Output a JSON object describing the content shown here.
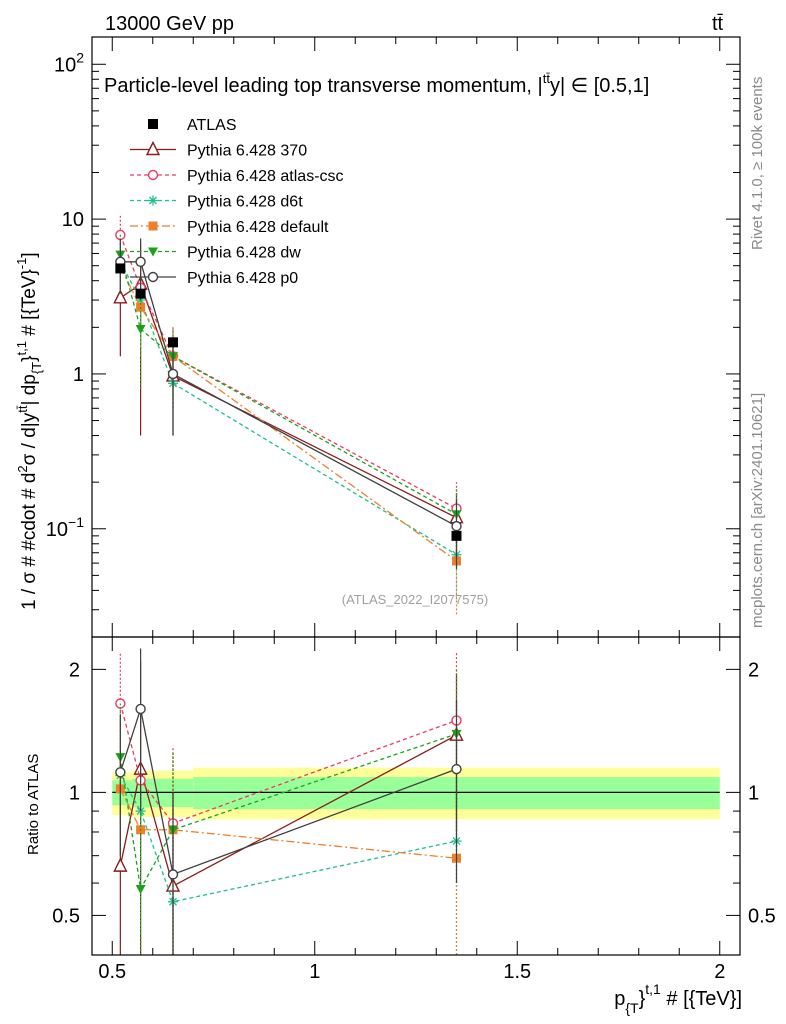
{
  "header": {
    "energy": "13000 GeV pp",
    "process": "tt̄",
    "side_rivet": "Rivet 4.1.0, ≥ 100k events",
    "side_mcplots": "mcplots.cern.ch [arXiv:2401.10621]",
    "analysis_id": "(ATLAS_2022_I2077575)"
  },
  "chart_data": [
    {
      "type": "line",
      "panel": "main",
      "title": "Particle-level leading top transverse momentum, |y^{tt̄}| ∈ [0.5,1]",
      "title_prefix": "Particle-level leading top transverse momentum, |",
      "title_sup": "tt̄",
      "title_y": "y",
      "title_suffix": "| ∈ [0.5,1]",
      "ylabel": "1 / σ # #cdot # d²σ / d|y^{tt̄}| dp_{T}^{t,1} # [{TeV}⁻¹]",
      "ylabel_main": "1 / σ # #cdot # d",
      "ylabel_sq": "2",
      "ylabel_mid": "σ / d|y",
      "ylabel_sup": "tt̄",
      "ylabel_mid2": "| dp",
      "ylabel_sub": "{T",
      "ylabel_brace": "}",
      "ylabel_sup2": "t,1",
      "ylabel_end": " # [{TeV}",
      "ylabel_sup3": "-1",
      "ylabel_close": "]",
      "yscale": "log",
      "ylim": [
        0.02,
        150
      ],
      "xlim": [
        0.45,
        2.05
      ],
      "ytick_labels": [
        {
          "value": 100,
          "base": "10",
          "exp": "2"
        },
        {
          "value": 10,
          "base": "10",
          "exp": ""
        },
        {
          "value": 1,
          "base": "1",
          "exp": ""
        },
        {
          "value": 0.1,
          "base": "10",
          "exp": "−1"
        }
      ],
      "legend": [
        {
          "label": "ATLAS"
        },
        {
          "label": "Pythia 6.428 370"
        },
        {
          "label": "Pythia 6.428 atlas-csc"
        },
        {
          "label": "Pythia 6.428 d6t"
        },
        {
          "label": "Pythia 6.428 default"
        },
        {
          "label": "Pythia 6.428 dw"
        },
        {
          "label": "Pythia 6.428 p0"
        }
      ],
      "data": {
        "name": "ATLAS",
        "bins": [
          [
            0.5,
            0.55
          ],
          [
            0.55,
            0.6
          ],
          [
            0.6,
            0.7
          ],
          [
            0.7,
            2.0
          ]
        ],
        "x": [
          0.52,
          0.57,
          0.65,
          1.35
        ],
        "values": [
          4.8,
          3.3,
          1.6,
          0.09
        ]
      },
      "series": [
        {
          "name": "Pythia 6.428 370",
          "color": "#8b1a1a",
          "dash": "",
          "marker": "triangle-open",
          "x": [
            0.52,
            0.57,
            0.65,
            1.35
          ],
          "values": [
            3.1,
            3.8,
            0.97,
            0.118
          ],
          "err_low": [
            1.3,
            0.4,
            0.4,
            0.07
          ],
          "err_high": [
            5.6,
            7.0,
            1.6,
            0.17
          ]
        },
        {
          "name": "Pythia 6.428 atlas-csc",
          "color": "#ee3a5f",
          "dash": "4,3",
          "marker": "circle-open",
          "x": [
            0.52,
            0.57,
            0.65,
            1.35
          ],
          "values": [
            7.9,
            3.6,
            1.3,
            0.135
          ],
          "err_low": [
            5.0,
            2.0,
            0.7,
            0.08
          ],
          "err_high": [
            10.5,
            5.0,
            2.0,
            0.2
          ]
        },
        {
          "name": "Pythia 6.428 d6t",
          "color": "#1fbf8f",
          "dash": "4,3",
          "marker": "asterisk",
          "x": [
            0.52,
            0.57,
            0.65,
            1.35
          ],
          "values": [
            5.3,
            3.0,
            0.87,
            0.068
          ],
          "err_low": [
            3.5,
            1.5,
            0.4,
            0.035
          ],
          "err_high": [
            7.0,
            4.5,
            1.3,
            0.1
          ]
        },
        {
          "name": "Pythia 6.428 default",
          "color": "#f07f2a",
          "dash": "8,3,2,3",
          "marker": "square-filled",
          "x": [
            0.52,
            0.57,
            0.65,
            1.35
          ],
          "values": [
            4.9,
            2.7,
            1.3,
            0.062
          ],
          "err_low": [
            3.4,
            1.3,
            0.6,
            0.028
          ],
          "err_high": [
            7.0,
            4.0,
            2.0,
            0.1
          ]
        },
        {
          "name": "Pythia 6.428 dw",
          "color": "#1aa31a",
          "dash": "4,3",
          "marker": "triangle-down-filled",
          "x": [
            0.52,
            0.57,
            0.65,
            1.35
          ],
          "values": [
            5.9,
            1.95,
            1.3,
            0.124
          ],
          "err_low": [
            4.0,
            0.8,
            0.6,
            0.06
          ],
          "err_high": [
            8.0,
            3.2,
            2.0,
            0.18
          ]
        },
        {
          "name": "Pythia 6.428 p0",
          "color": "#404040",
          "dash": "",
          "marker": "circle-open",
          "x": [
            0.52,
            0.57,
            0.65,
            1.35
          ],
          "values": [
            5.3,
            5.3,
            1.0,
            0.104
          ],
          "err_low": [
            3.3,
            3.0,
            0.4,
            0.055
          ],
          "err_high": [
            7.5,
            7.5,
            1.6,
            0.155
          ]
        }
      ]
    },
    {
      "type": "line",
      "panel": "ratio",
      "ylabel": "Ratio to ATLAS",
      "xlabel": "p_{T}^{t,1} # [{TeV}]",
      "xlabel_p": "p",
      "xlabel_sub": "{T",
      "xlabel_brace": "}",
      "xlabel_sup": "t,1",
      "xlabel_end": " # [{TeV}]",
      "yscale": "log",
      "ylim": [
        0.4,
        2.4
      ],
      "xlim": [
        0.45,
        2.05
      ],
      "xticks": [
        0.5,
        1,
        1.5,
        2
      ],
      "xtick_labels": [
        "0.5",
        "1",
        "1.5",
        "2"
      ],
      "yticks": [
        0.5,
        1,
        2
      ],
      "ytick_labels": [
        "0.5",
        "1",
        "2"
      ],
      "uncertainty_bands": {
        "bins": [
          [
            0.5,
            0.55
          ],
          [
            0.55,
            0.6
          ],
          [
            0.6,
            0.7
          ],
          [
            0.7,
            2.0
          ]
        ],
        "inner": [
          [
            0.93,
            1.07
          ],
          [
            0.92,
            1.08
          ],
          [
            0.92,
            1.08
          ],
          [
            0.91,
            1.09
          ]
        ],
        "outer": [
          [
            0.88,
            1.12
          ],
          [
            0.87,
            1.13
          ],
          [
            0.87,
            1.13
          ],
          [
            0.86,
            1.15
          ]
        ]
      },
      "series": [
        {
          "name": "Pythia 6.428 370",
          "x": [
            0.52,
            0.57,
            0.65,
            1.35
          ],
          "values": [
            0.66,
            1.14,
            0.59,
            1.38
          ],
          "err_low": [
            0.3,
            0.12,
            0.25,
            0.8
          ],
          "err_high": [
            1.2,
            2.1,
            1.0,
            1.95
          ]
        },
        {
          "name": "Pythia 6.428 atlas-csc",
          "x": [
            0.52,
            0.57,
            0.65,
            1.35
          ],
          "values": [
            1.65,
            1.07,
            0.84,
            1.5
          ],
          "err_low": [
            1.05,
            0.6,
            0.45,
            0.9
          ],
          "err_high": [
            2.2,
            1.5,
            1.3,
            2.2
          ]
        },
        {
          "name": "Pythia 6.428 d6t",
          "x": [
            0.52,
            0.57,
            0.65,
            1.35
          ],
          "values": [
            1.1,
            0.9,
            0.54,
            0.76
          ],
          "err_low": [
            0.75,
            0.45,
            0.25,
            0.4
          ],
          "err_high": [
            1.5,
            1.35,
            0.82,
            1.1
          ]
        },
        {
          "name": "Pythia 6.428 default",
          "x": [
            0.52,
            0.57,
            0.65,
            1.35
          ],
          "values": [
            1.02,
            0.81,
            0.81,
            0.69
          ],
          "err_low": [
            0.7,
            0.4,
            0.38,
            0.32
          ],
          "err_high": [
            1.45,
            1.2,
            1.25,
            1.1
          ]
        },
        {
          "name": "Pythia 6.428 dw",
          "x": [
            0.52,
            0.57,
            0.65,
            1.35
          ],
          "values": [
            1.22,
            0.58,
            0.81,
            1.39
          ],
          "err_low": [
            0.85,
            0.25,
            0.38,
            0.7
          ],
          "err_high": [
            1.65,
            0.95,
            1.25,
            2.0
          ]
        },
        {
          "name": "Pythia 6.428 p0",
          "x": [
            0.52,
            0.57,
            0.65,
            1.35
          ],
          "values": [
            1.12,
            1.6,
            0.63,
            1.14
          ],
          "err_low": [
            0.7,
            0.9,
            0.27,
            0.6
          ],
          "err_high": [
            1.55,
            2.25,
            1.0,
            1.68
          ]
        }
      ]
    }
  ]
}
